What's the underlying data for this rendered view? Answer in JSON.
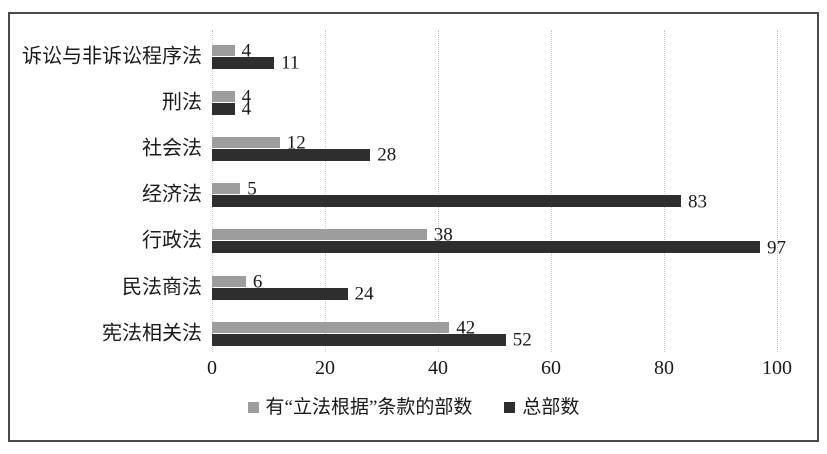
{
  "chart_data": {
    "type": "bar",
    "orientation": "horizontal",
    "title": "",
    "xlabel": "",
    "ylabel": "",
    "xlim": [
      0,
      100
    ],
    "x_ticks": [
      0,
      20,
      40,
      60,
      80,
      100
    ],
    "grid": "vertical-dotted",
    "legend_position": "bottom",
    "value_labels": true,
    "categories_top_to_bottom": [
      "诉讼与非诉讼程序法",
      "刑法",
      "社会法",
      "经济法",
      "行政法",
      "民法商法",
      "宪法相关法"
    ],
    "series": [
      {
        "name": "有“立法根据”条款的部数",
        "color": "#9d9d9d",
        "values": [
          4,
          4,
          12,
          5,
          38,
          6,
          42
        ]
      },
      {
        "name": "总部数",
        "color": "#2e2e2e",
        "values": [
          11,
          4,
          28,
          83,
          97,
          24,
          52
        ]
      }
    ]
  },
  "colors": {
    "frame_border": "#4a4a4a",
    "gridline": "#c9c9c9",
    "text": "#1a1a1a",
    "background": "#ffffff"
  }
}
